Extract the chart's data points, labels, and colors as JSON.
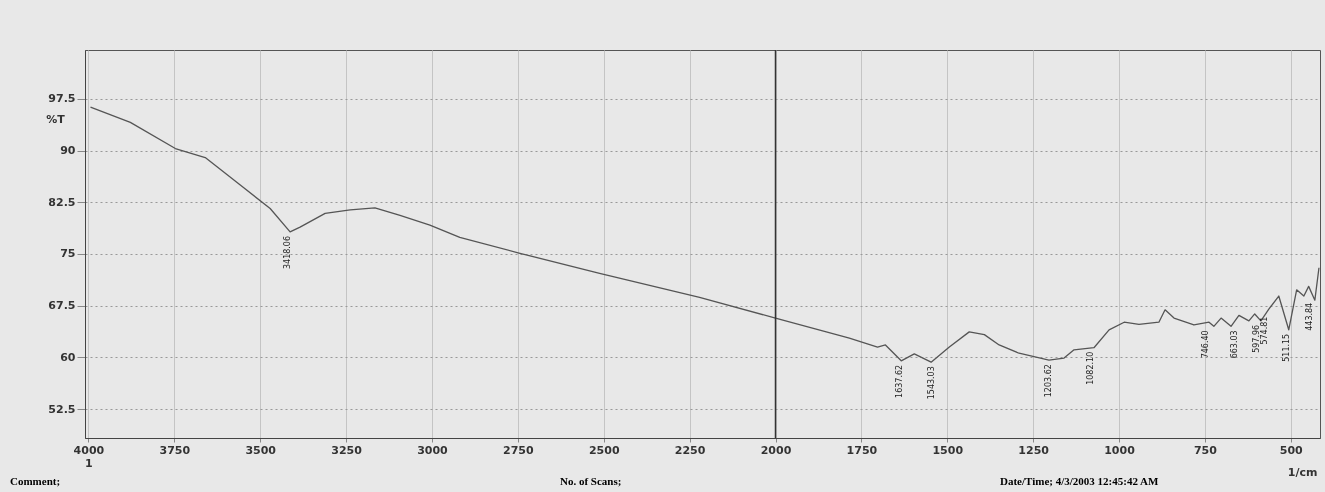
{
  "chart_data": {
    "type": "line",
    "ylabel": "%T",
    "xlabel": "1/cm",
    "xlim": [
      4010,
      415
    ],
    "ylim": [
      48.3,
      104.6
    ],
    "xticks": [
      {
        "value": 4000,
        "label": "4000\n1"
      },
      3750,
      3500,
      3250,
      3000,
      2750,
      2500,
      2250,
      2000,
      1750,
      1500,
      1250,
      1000,
      750,
      500
    ],
    "yticks": [
      52.5,
      60,
      67.5,
      75,
      82.5,
      90,
      97.5
    ],
    "grid": true,
    "ref_lines": [
      {
        "axis": "x",
        "value": 2000,
        "color": "#333333"
      }
    ],
    "series": [
      {
        "color": "#555555",
        "x": [
          3994,
          3878,
          3747,
          3660,
          3558,
          3471,
          3413,
          3384,
          3311,
          3238,
          3166,
          3093,
          3006,
          2919,
          2744,
          2512,
          2221,
          2000,
          1785,
          1703,
          1680,
          1634,
          1596,
          1547,
          1494,
          1436,
          1392,
          1349,
          1291,
          1204,
          1160,
          1131,
          1073,
          1029,
          985,
          942,
          884,
          866,
          840,
          782,
          738,
          724,
          703,
          674,
          651,
          622,
          605,
          587,
          564,
          535,
          506,
          483,
          462,
          448,
          430,
          418
        ],
        "values": [
          96.3,
          94.1,
          90.3,
          89.0,
          85.0,
          81.6,
          78.2,
          78.9,
          80.9,
          81.4,
          81.7,
          80.6,
          79.2,
          77.4,
          75.1,
          72.2,
          68.7,
          65.7,
          62.8,
          61.5,
          61.8,
          59.5,
          60.5,
          59.3,
          61.5,
          63.7,
          63.3,
          61.8,
          60.6,
          59.6,
          59.9,
          61.1,
          61.4,
          64.0,
          65.1,
          64.8,
          65.1,
          66.9,
          65.7,
          64.7,
          65.1,
          64.5,
          65.7,
          64.5,
          66.1,
          65.3,
          66.3,
          65.3,
          67.0,
          68.9,
          64.0,
          69.8,
          68.9,
          70.3,
          68.3,
          73.0
        ]
      }
    ],
    "annotations": [
      {
        "text": "3418.06",
        "x": 3418,
        "y": 78.2
      },
      {
        "text": "1637.62",
        "x": 1637,
        "y": 59.5
      },
      {
        "text": "1543.03",
        "x": 1543,
        "y": 59.3
      },
      {
        "text": "1203.62",
        "x": 1203,
        "y": 59.6
      },
      {
        "text": "1082.10",
        "x": 1082,
        "y": 61.4
      },
      {
        "text": "746.40",
        "x": 746,
        "y": 64.5
      },
      {
        "text": "663.03",
        "x": 663,
        "y": 64.5
      },
      {
        "text": "597.96",
        "x": 598,
        "y": 65.3
      },
      {
        "text": "574.81",
        "x": 575,
        "y": 66.5
      },
      {
        "text": "511.15",
        "x": 511,
        "y": 64.0
      },
      {
        "text": "443.84",
        "x": 444,
        "y": 68.5
      },
      "Comment;",
      "No. of Scans;",
      "Date/Time; 4/3/2003 12:45:42 AM"
    ]
  }
}
